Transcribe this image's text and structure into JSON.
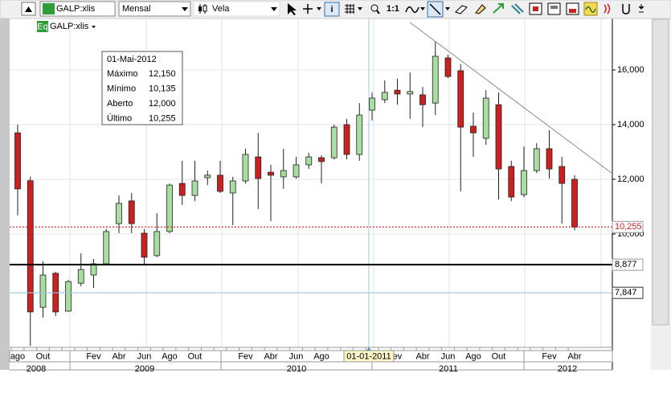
{
  "toolbar": {
    "symbol": "GALP:xlis",
    "period": "Mensal",
    "chart_type": "Vela",
    "ratio": "1:1"
  },
  "legend": {
    "badge": "Eq",
    "symbol": "GALP:xlis"
  },
  "info": {
    "date": "01-Mai-2012",
    "rows": [
      [
        "Máximo",
        "12,150"
      ],
      [
        "Mínimo",
        "10,135"
      ],
      [
        "Aberto",
        "12,000"
      ],
      [
        "Último",
        "10,255"
      ]
    ]
  },
  "crosshair_label": "01-01-2011",
  "chart_data": {
    "type": "candlestick",
    "categories": [
      "ago",
      null,
      "Out",
      null,
      null,
      null,
      "Fev",
      null,
      "Abr",
      null,
      "Jun",
      null,
      "Ago",
      null,
      "Out",
      null,
      null,
      null,
      "Fev",
      null,
      "Abr",
      null,
      "Jun",
      null,
      "Ago",
      null,
      null,
      null,
      null,
      null,
      "ev",
      null,
      "Abr",
      null,
      "Jun",
      null,
      "Ago",
      null,
      "Out",
      null,
      null,
      null,
      "Fev",
      null,
      "Abr"
    ],
    "years": [
      "2008",
      "2009",
      "2010",
      "2011",
      "2012"
    ],
    "open": [
      13700,
      11950,
      7320,
      8560,
      7180,
      8200,
      8500,
      8910,
      10380,
      11210,
      10030,
      9210,
      10090,
      11850,
      11410,
      12060,
      12150,
      11500,
      11940,
      12820,
      12260,
      12090,
      12090,
      12530,
      12790,
      12790,
      14000,
      12910,
      14530,
      14910,
      15260,
      15120,
      15090,
      14790,
      16440,
      15970,
      13940,
      13500,
      14730,
      12470,
      11440,
      12320,
      13120,
      12470,
      12000
    ],
    "high": [
      14000,
      12100,
      9000,
      8620,
      8320,
      9290,
      9090,
      10180,
      11410,
      11500,
      10180,
      10760,
      11850,
      12680,
      12680,
      12320,
      12680,
      12090,
      13120,
      13700,
      12530,
      13120,
      12820,
      12970,
      12880,
      14000,
      14210,
      14790,
      15180,
      15620,
      15680,
      15910,
      15380,
      17030,
      16560,
      16210,
      14440,
      15260,
      15180,
      12680,
      13200,
      13320,
      13790,
      12820,
      12150
    ],
    "low": [
      10680,
      5910,
      6940,
      7000,
      7150,
      8090,
      8030,
      8850,
      10030,
      10030,
      8850,
      9150,
      10030,
      11060,
      11200,
      11790,
      11500,
      10320,
      11850,
      10910,
      10470,
      11650,
      12030,
      12380,
      11850,
      12730,
      12730,
      12680,
      14150,
      14790,
      14730,
      14210,
      13910,
      14350,
      15700,
      11560,
      12820,
      13260,
      11260,
      11200,
      11350,
      12230,
      12030,
      10380,
      10135
    ],
    "close": [
      11650,
      7150,
      8500,
      7150,
      8260,
      8700,
      8910,
      10090,
      11120,
      10380,
      9150,
      10090,
      11790,
      11410,
      11940,
      12150,
      11560,
      11940,
      12910,
      12030,
      12150,
      12320,
      12530,
      12820,
      12650,
      13910,
      12910,
      14350,
      14970,
      15180,
      15120,
      15210,
      14730,
      16500,
      15760,
      13910,
      13700,
      14970,
      12380,
      11350,
      12320,
      13120,
      12380,
      11850,
      10255
    ],
    "up_color": "#a8dfa0",
    "down_color": "#cc1f1f",
    "ylim": [
      5853,
      17912
    ],
    "yticks": [
      {
        "value": 10000,
        "label": "10,000"
      },
      {
        "value": 12000,
        "label": "12,000"
      },
      {
        "value": 14000,
        "label": "14,000"
      },
      {
        "value": 16000,
        "label": "16,000"
      }
    ],
    "grid": true,
    "hlines": [
      {
        "value": 10255,
        "label": "10,255",
        "color": "#cc1f1f",
        "style": "dotted"
      },
      {
        "value": 8877,
        "label": "8,877",
        "color": "#000000",
        "style": "solid"
      },
      {
        "value": 7847,
        "label": "7,847",
        "color": "#9cc8e0",
        "style": "solid"
      }
    ],
    "trendline": {
      "x": [
        31,
        46.9
      ],
      "y": [
        17735,
        12235
      ]
    }
  }
}
